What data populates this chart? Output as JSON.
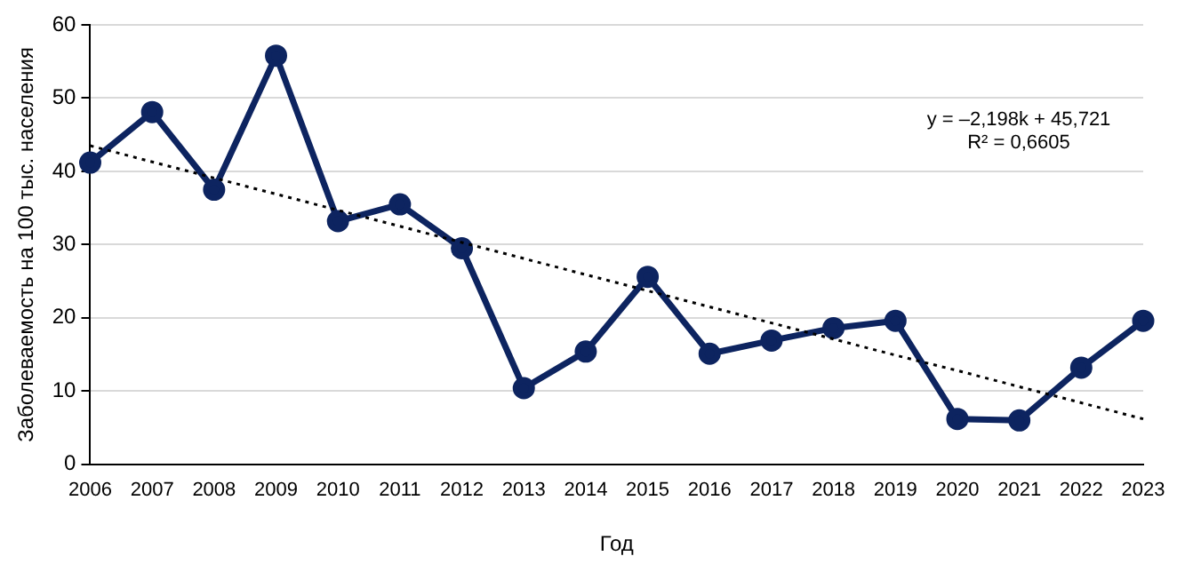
{
  "chart_data": {
    "type": "line",
    "xlabel": "Год",
    "ylabel": "Заболеваемость на 100 тыс. населения",
    "categories": [
      "2006",
      "2007",
      "2008",
      "2009",
      "2010",
      "2011",
      "2012",
      "2013",
      "2014",
      "2015",
      "2016",
      "2017",
      "2018",
      "2019",
      "2020",
      "2021",
      "2022",
      "2023"
    ],
    "series": [
      {
        "color": "#0d2460",
        "values": [
          41.2,
          48.1,
          37.5,
          55.8,
          33.2,
          35.5,
          29.5,
          10.4,
          15.4,
          25.6,
          15.1,
          16.9,
          18.6,
          19.6,
          6.2,
          6.0,
          13.2,
          19.6
        ]
      },
      {
        "type": "line",
        "color": "#000000",
        "values": [
          43.5,
          41.3,
          39.1,
          36.9,
          34.7,
          32.5,
          30.3,
          28.1,
          25.9,
          23.7,
          21.5,
          19.3,
          17.1,
          14.9,
          12.8,
          10.6,
          8.4,
          6.2
        ],
        "line_style": "dotted",
        "marker": "none"
      }
    ],
    "ylim": [
      0,
      60
    ],
    "yticks": [
      0,
      10,
      20,
      30,
      40,
      50,
      60
    ],
    "grid": "y",
    "legend": false,
    "marker": "circle",
    "line_style": "solid",
    "annotations": [
      "y = –2,198k + 45,721\nR² = 0,6605"
    ]
  }
}
